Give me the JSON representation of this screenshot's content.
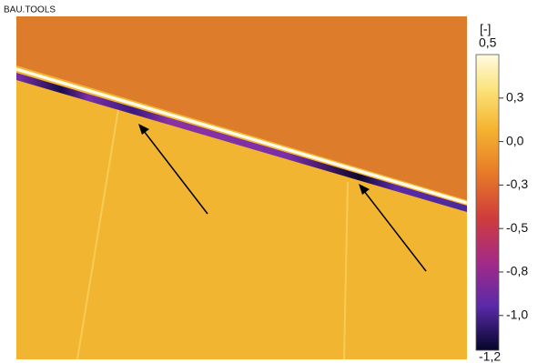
{
  "watermark": "BAU.TOOLS",
  "colorbar": {
    "unit": "[-]",
    "lim": [
      -1.2,
      0.5
    ],
    "ticks": [
      {
        "value": 0.5,
        "label": "0,5"
      },
      {
        "value": 0.25,
        "label": "0,3"
      },
      {
        "value": 0,
        "label": "0,0"
      },
      {
        "value": -0.25,
        "label": "-0,3"
      },
      {
        "value": -0.5,
        "label": "-0,5"
      },
      {
        "value": -0.75,
        "label": "-0,8"
      },
      {
        "value": -1.0,
        "label": "-1,0"
      },
      {
        "value": -1.2,
        "label": "-1,2"
      }
    ]
  }
}
